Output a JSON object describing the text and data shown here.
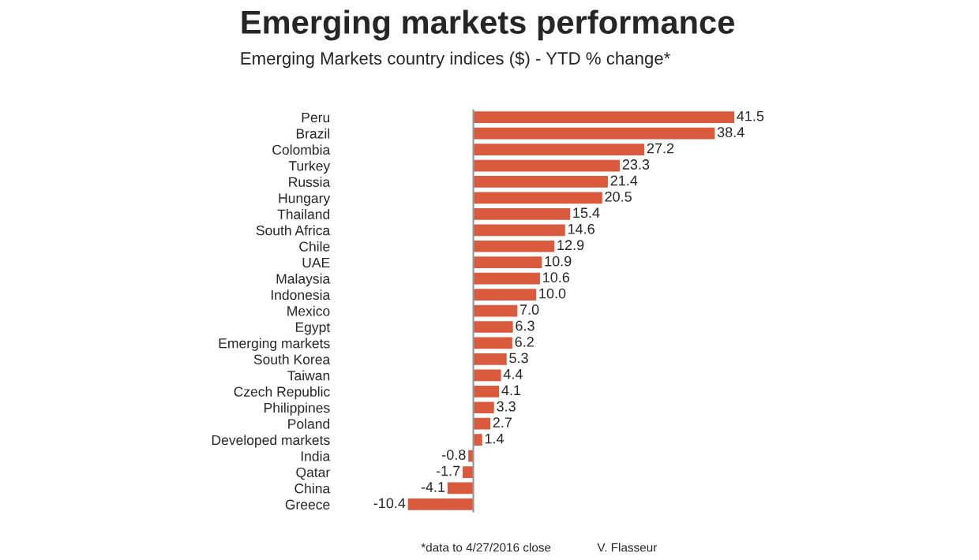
{
  "chart_data": {
    "type": "bar",
    "orientation": "horizontal",
    "title": "Emerging markets performance",
    "subtitle": "Emerging Markets country indices ($) - YTD % change*",
    "categories": [
      "Peru",
      "Brazil",
      "Colombia",
      "Turkey",
      "Russia",
      "Hungary",
      "Thailand",
      "South Africa",
      "Chile",
      "UAE",
      "Malaysia",
      "Indonesia",
      "Mexico",
      "Egypt",
      "Emerging markets",
      "South Korea",
      "Taiwan",
      "Czech Republic",
      "Philippines",
      "Poland",
      "Developed markets",
      "India",
      "Qatar",
      "China",
      "Greece"
    ],
    "values": [
      41.5,
      38.4,
      27.2,
      23.3,
      21.4,
      20.5,
      15.4,
      14.6,
      12.9,
      10.9,
      10.6,
      10.0,
      7.0,
      6.3,
      6.2,
      5.3,
      4.4,
      4.1,
      3.3,
      2.7,
      1.4,
      -0.8,
      -1.7,
      -4.1,
      -10.4
    ],
    "value_labels": [
      "41.5",
      "38.4",
      "27.2",
      "23.3",
      "21.4",
      "20.5",
      "15.4",
      "14.6",
      "12.9",
      "10.9",
      "10.6",
      "10.0",
      "7.0",
      "6.3",
      "6.2",
      "5.3",
      "4.4",
      "4.1",
      "3.3",
      "2.7",
      "1.4",
      "-0.8",
      "-1.7",
      "-4.1",
      "-10.4"
    ],
    "color": "#d95a3c",
    "grid": false,
    "legend": false,
    "annotations": [
      "*data to 4/27/2016 close",
      "V. Flasseur"
    ]
  }
}
